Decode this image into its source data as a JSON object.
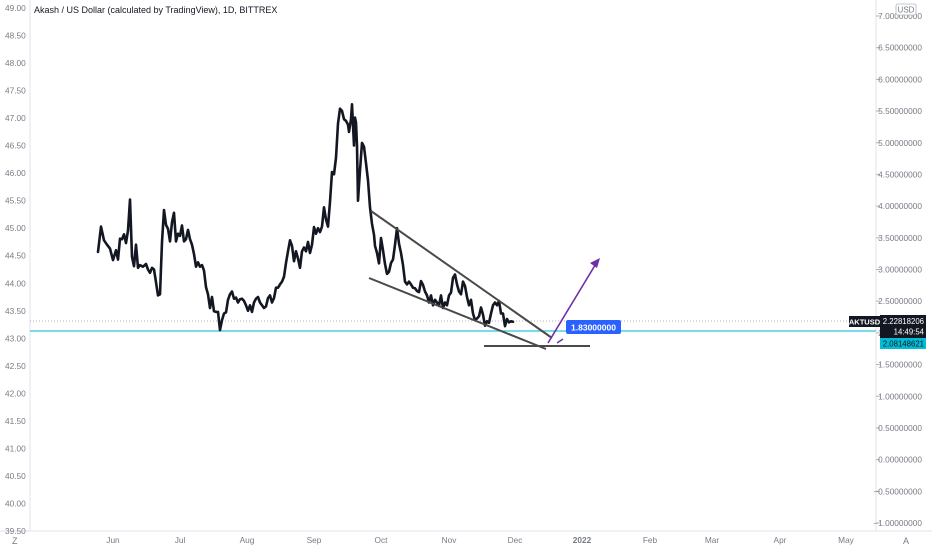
{
  "title": "Akash / US Dollar (calculated by TradingView), 1D, BITTREX",
  "currency_label": "USD",
  "corner_left": "Z",
  "corner_right": "A",
  "colors": {
    "price_line": "#131722",
    "trendline": "#4a4a4a",
    "support_line": "#26c6da",
    "target_arrow": "#6f2da8",
    "label_blue": "#2962ff",
    "label_support": "#00bcd4",
    "label_black": "#131722",
    "axis_text": "#787b86"
  },
  "chart_data": {
    "type": "line",
    "symbol": "AKTUSD",
    "left_axis": {
      "ticks": [
        "49.00",
        "48.50",
        "48.00",
        "47.50",
        "47.00",
        "46.50",
        "46.00",
        "45.50",
        "45.00",
        "44.50",
        "44.00",
        "43.50",
        "43.00",
        "42.50",
        "42.00",
        "41.50",
        "41.00",
        "40.50",
        "40.00",
        "39.50"
      ],
      "range": [
        39.5,
        49.0
      ]
    },
    "right_axis": {
      "ticks": [
        "7.00000000",
        "6.50000000",
        "6.00000000",
        "5.50000000",
        "5.00000000",
        "4.50000000",
        "4.00000000",
        "3.50000000",
        "3.00000000",
        "2.50000000",
        "2.00000000",
        "1.50000000",
        "1.00000000",
        "0.50000000",
        "0.00000000",
        "−0.50000000",
        "−1.00000000"
      ],
      "range": [
        -1.0,
        7.0
      ]
    },
    "x_ticks": [
      "Jun",
      "Jul",
      "Aug",
      "Sep",
      "Oct",
      "Nov",
      "Dec",
      "2022",
      "Feb",
      "Mar",
      "Apr",
      "May"
    ],
    "series": [
      {
        "y_axis": "left",
        "points": [
          [
            98,
            44.57
          ],
          [
            101,
            45.03
          ],
          [
            104,
            44.78
          ],
          [
            107,
            44.7
          ],
          [
            110,
            44.63
          ],
          [
            113,
            44.42
          ],
          [
            116,
            44.6
          ],
          [
            118,
            44.43
          ],
          [
            120,
            44.81
          ],
          [
            122,
            44.8
          ],
          [
            124,
            44.89
          ],
          [
            126,
            44.73
          ],
          [
            128,
            44.96
          ],
          [
            130,
            45.52
          ],
          [
            132,
            44.48
          ],
          [
            134,
            44.31
          ],
          [
            136,
            44.7
          ],
          [
            138,
            44.28
          ],
          [
            140,
            44.33
          ],
          [
            143,
            44.3
          ],
          [
            146,
            44.35
          ],
          [
            148,
            44.25
          ],
          [
            150,
            44.19
          ],
          [
            152,
            44.28
          ],
          [
            154,
            44.25
          ],
          [
            156,
            44.02
          ],
          [
            158,
            43.78
          ],
          [
            160,
            43.8
          ],
          [
            162,
            44.75
          ],
          [
            164,
            45.33
          ],
          [
            166,
            45.06
          ],
          [
            168,
            44.99
          ],
          [
            170,
            44.76
          ],
          [
            172,
            45.11
          ],
          [
            174,
            45.28
          ],
          [
            176,
            44.76
          ],
          [
            178,
            44.9
          ],
          [
            180,
            44.86
          ],
          [
            182,
            45.05
          ],
          [
            184,
            44.76
          ],
          [
            186,
            44.8
          ],
          [
            188,
            44.97
          ],
          [
            190,
            44.8
          ],
          [
            192,
            44.7
          ],
          [
            194,
            44.53
          ],
          [
            196,
            44.3
          ],
          [
            198,
            44.38
          ],
          [
            200,
            44.3
          ],
          [
            202,
            44.33
          ],
          [
            204,
            44.23
          ],
          [
            206,
            43.93
          ],
          [
            208,
            43.8
          ],
          [
            210,
            43.55
          ],
          [
            212,
            43.75
          ],
          [
            214,
            43.49
          ],
          [
            216,
            43.48
          ],
          [
            218,
            43.48
          ],
          [
            220,
            43.15
          ],
          [
            222,
            43.33
          ],
          [
            224,
            43.45
          ],
          [
            226,
            43.47
          ],
          [
            228,
            43.7
          ],
          [
            230,
            43.8
          ],
          [
            232,
            43.85
          ],
          [
            234,
            43.72
          ],
          [
            236,
            43.74
          ],
          [
            238,
            43.65
          ],
          [
            240,
            43.71
          ],
          [
            242,
            43.72
          ],
          [
            244,
            43.68
          ],
          [
            246,
            43.6
          ],
          [
            248,
            43.5
          ],
          [
            250,
            43.6
          ],
          [
            252,
            43.48
          ],
          [
            254,
            43.65
          ],
          [
            256,
            43.72
          ],
          [
            258,
            43.75
          ],
          [
            260,
            43.65
          ],
          [
            262,
            43.6
          ],
          [
            264,
            43.55
          ],
          [
            266,
            43.58
          ],
          [
            268,
            43.73
          ],
          [
            270,
            43.78
          ],
          [
            272,
            43.65
          ],
          [
            274,
            43.73
          ],
          [
            276,
            43.92
          ],
          [
            278,
            43.92
          ],
          [
            280,
            43.98
          ],
          [
            282,
            44.03
          ],
          [
            284,
            44.12
          ],
          [
            286,
            44.37
          ],
          [
            288,
            44.58
          ],
          [
            290,
            44.78
          ],
          [
            292,
            44.68
          ],
          [
            294,
            44.4
          ],
          [
            296,
            44.58
          ],
          [
            298,
            44.45
          ],
          [
            300,
            44.28
          ],
          [
            302,
            44.58
          ],
          [
            304,
            44.65
          ],
          [
            306,
            44.58
          ],
          [
            308,
            44.75
          ],
          [
            310,
            44.55
          ],
          [
            312,
            44.7
          ],
          [
            314,
            45.02
          ],
          [
            316,
            44.9
          ],
          [
            318,
            45.0
          ],
          [
            320,
            44.93
          ],
          [
            322,
            45.03
          ],
          [
            324,
            45.38
          ],
          [
            326,
            45.16
          ],
          [
            328,
            45.03
          ],
          [
            330,
            45.48
          ],
          [
            332,
            46.02
          ],
          [
            334,
            45.98
          ],
          [
            336,
            46.28
          ],
          [
            338,
            46.9
          ],
          [
            340,
            47.17
          ],
          [
            342,
            47.13
          ],
          [
            344,
            46.98
          ],
          [
            346,
            46.95
          ],
          [
            348,
            46.88
          ],
          [
            349,
            46.75
          ],
          [
            351,
            46.98
          ],
          [
            352,
            47.25
          ],
          [
            354,
            46.5
          ],
          [
            355,
            47.01
          ],
          [
            356,
            46.92
          ],
          [
            357,
            46.5
          ],
          [
            358,
            45.5
          ],
          [
            359,
            45.78
          ],
          [
            360,
            46.05
          ],
          [
            362,
            46.55
          ],
          [
            364,
            46.48
          ],
          [
            366,
            46.18
          ],
          [
            368,
            45.87
          ],
          [
            370,
            45.38
          ],
          [
            372,
            45.08
          ],
          [
            374,
            44.88
          ],
          [
            375,
            44.68
          ],
          [
            377,
            44.55
          ],
          [
            379,
            44.36
          ],
          [
            381,
            44.82
          ],
          [
            383,
            44.6
          ],
          [
            385,
            44.35
          ],
          [
            387,
            44.17
          ],
          [
            389,
            44.21
          ],
          [
            391,
            44.37
          ],
          [
            393,
            44.43
          ],
          [
            395,
            44.7
          ],
          [
            397,
            45.0
          ],
          [
            399,
            44.72
          ],
          [
            401,
            44.55
          ],
          [
            403,
            44.33
          ],
          [
            405,
            44.03
          ],
          [
            407,
            43.98
          ],
          [
            409,
            44.03
          ],
          [
            411,
            43.98
          ],
          [
            413,
            43.92
          ],
          [
            415,
            43.91
          ],
          [
            417,
            43.86
          ],
          [
            419,
            43.84
          ],
          [
            421,
            44.04
          ],
          [
            423,
            43.97
          ],
          [
            425,
            43.85
          ],
          [
            427,
            43.78
          ],
          [
            429,
            43.65
          ],
          [
            431,
            43.78
          ],
          [
            433,
            43.6
          ],
          [
            435,
            43.7
          ],
          [
            437,
            43.65
          ],
          [
            439,
            43.59
          ],
          [
            441,
            43.78
          ],
          [
            443,
            43.55
          ],
          [
            445,
            43.65
          ],
          [
            447,
            43.6
          ],
          [
            449,
            43.78
          ],
          [
            451,
            43.83
          ],
          [
            453,
            44.1
          ],
          [
            455,
            44.16
          ],
          [
            457,
            43.98
          ],
          [
            459,
            43.85
          ],
          [
            461,
            43.8
          ],
          [
            463,
            44.03
          ],
          [
            465,
            43.95
          ],
          [
            467,
            43.75
          ],
          [
            469,
            43.6
          ],
          [
            471,
            43.7
          ],
          [
            473,
            43.45
          ],
          [
            475,
            43.33
          ],
          [
            477,
            43.36
          ],
          [
            479,
            43.4
          ],
          [
            481,
            43.56
          ],
          [
            483,
            43.43
          ],
          [
            485,
            43.23
          ],
          [
            487,
            43.31
          ],
          [
            489,
            43.28
          ],
          [
            491,
            43.45
          ],
          [
            493,
            43.6
          ],
          [
            495,
            43.65
          ],
          [
            497,
            43.6
          ],
          [
            499,
            43.68
          ],
          [
            501,
            43.45
          ],
          [
            503,
            43.45
          ],
          [
            505,
            43.22
          ],
          [
            507,
            43.35
          ],
          [
            509,
            43.29
          ],
          [
            511,
            43.31
          ],
          [
            513,
            43.3
          ]
        ]
      }
    ],
    "annotations": {
      "target_price": "1.83000000",
      "current_price": "2.22818206",
      "countdown": "14:49:54",
      "support_price": "2.08148621",
      "symbol_label": "AKTUSD"
    }
  }
}
